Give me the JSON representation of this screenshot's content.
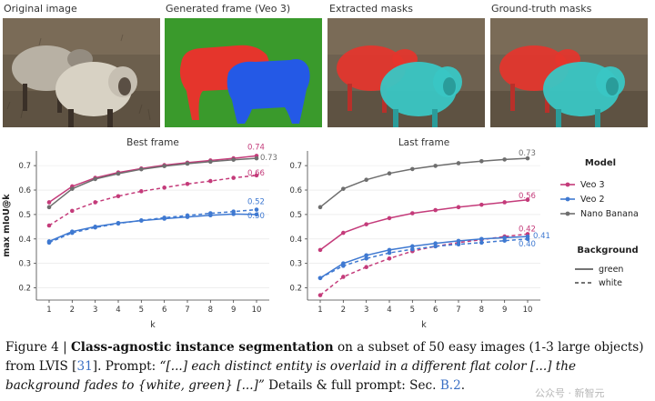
{
  "panels": {
    "original": "Original image",
    "generated": "Generated frame (Veo 3)",
    "extracted": "Extracted masks",
    "groundtruth": "Ground-truth masks"
  },
  "colors": {
    "veo3": "#c43b7a",
    "veo2": "#3f79d1",
    "nano": "#6e6e6e",
    "mask_red": "#e5352c",
    "mask_blue": "#2459e6",
    "mask_green": "#3a9a2c",
    "mask_cyan": "#39c6c4"
  },
  "chart_data": [
    {
      "type": "line",
      "title": "Best frame",
      "xlabel": "k",
      "ylabel": "max mIoU@k",
      "x": [
        1,
        2,
        3,
        4,
        5,
        6,
        7,
        8,
        9,
        10
      ],
      "xticks": [
        "1",
        "2",
        "3",
        "4",
        "5",
        "6",
        "7",
        "8",
        "9",
        "10"
      ],
      "ylim": [
        0.15,
        0.76
      ],
      "yticks": [
        "0.2",
        "0.3",
        "0.4",
        "0.5",
        "0.6",
        "0.7"
      ],
      "series": [
        {
          "name": "Veo 3",
          "background": "green",
          "color": "#c43b7a",
          "values": [
            0.55,
            0.615,
            0.65,
            0.672,
            0.688,
            0.702,
            0.712,
            0.721,
            0.73,
            0.74
          ],
          "end_label": "0.74"
        },
        {
          "name": "Veo 3",
          "background": "white",
          "color": "#c43b7a",
          "values": [
            0.455,
            0.515,
            0.55,
            0.575,
            0.595,
            0.61,
            0.625,
            0.637,
            0.65,
            0.66
          ],
          "end_label": "0.66"
        },
        {
          "name": "Nano Banana",
          "background": "green",
          "color": "#6e6e6e",
          "values": [
            0.53,
            0.605,
            0.645,
            0.667,
            0.685,
            0.698,
            0.708,
            0.716,
            0.724,
            0.73
          ],
          "end_label": "0.73"
        },
        {
          "name": "Veo 2",
          "background": "green",
          "color": "#3f79d1",
          "values": [
            0.39,
            0.43,
            0.45,
            0.465,
            0.475,
            0.483,
            0.49,
            0.497,
            0.502,
            0.5
          ],
          "end_label": "0.50"
        },
        {
          "name": "Veo 2",
          "background": "white",
          "color": "#3f79d1",
          "values": [
            0.385,
            0.425,
            0.447,
            0.463,
            0.476,
            0.487,
            0.496,
            0.505,
            0.512,
            0.52
          ],
          "end_label": "0.52"
        }
      ]
    },
    {
      "type": "line",
      "title": "Last frame",
      "xlabel": "k",
      "ylabel": "",
      "x": [
        1,
        2,
        3,
        4,
        5,
        6,
        7,
        8,
        9,
        10
      ],
      "xticks": [
        "1",
        "2",
        "3",
        "4",
        "5",
        "6",
        "7",
        "8",
        "9",
        "10"
      ],
      "ylim": [
        0.15,
        0.76
      ],
      "yticks": [
        "0.2",
        "0.3",
        "0.4",
        "0.5",
        "0.6",
        "0.7"
      ],
      "series": [
        {
          "name": "Nano Banana",
          "background": "green",
          "color": "#6e6e6e",
          "values": [
            0.53,
            0.605,
            0.642,
            0.668,
            0.686,
            0.699,
            0.71,
            0.718,
            0.725,
            0.73
          ],
          "end_label": "0.73"
        },
        {
          "name": "Veo 3",
          "background": "green",
          "color": "#c43b7a",
          "values": [
            0.355,
            0.425,
            0.46,
            0.485,
            0.505,
            0.518,
            0.53,
            0.54,
            0.55,
            0.56
          ],
          "end_label": "0.56"
        },
        {
          "name": "Veo 3",
          "background": "white",
          "color": "#c43b7a",
          "values": [
            0.17,
            0.245,
            0.285,
            0.32,
            0.35,
            0.37,
            0.385,
            0.397,
            0.41,
            0.42
          ],
          "end_label": "0.42"
        },
        {
          "name": "Veo 2",
          "background": "green",
          "color": "#3f79d1",
          "values": [
            0.24,
            0.3,
            0.333,
            0.355,
            0.37,
            0.382,
            0.392,
            0.4,
            0.405,
            0.41
          ],
          "end_label": "0.41"
        },
        {
          "name": "Veo 2",
          "background": "white",
          "color": "#3f79d1",
          "values": [
            0.24,
            0.29,
            0.32,
            0.343,
            0.358,
            0.37,
            0.378,
            0.385,
            0.393,
            0.4
          ],
          "end_label": "0.40"
        }
      ]
    }
  ],
  "legend": {
    "model_title": "Model",
    "models": [
      {
        "name": "Veo 3",
        "color": "#c43b7a"
      },
      {
        "name": "Veo 2",
        "color": "#3f79d1"
      },
      {
        "name": "Nano Banana",
        "color": "#6e6e6e"
      }
    ],
    "background_title": "Background",
    "backgrounds": [
      {
        "name": "green",
        "style": "solid"
      },
      {
        "name": "white",
        "style": "dashed"
      }
    ]
  },
  "caption": {
    "figure": "Figure 4 | ",
    "bold": "Class-agnostic instance segmentation",
    "t1": " on a subset of 50 easy images (1-3 large objects) from LVIS [",
    "ref1": "31",
    "t2": "]. Prompt: ",
    "prompt": "“[...] each distinct entity is overlaid in a different flat color [...] the background fades to {white, green} [...]”",
    "t3": " Details & full prompt: Sec. ",
    "ref2": "B.2",
    "t4": "."
  },
  "watermark": "公众号 · 新智元"
}
